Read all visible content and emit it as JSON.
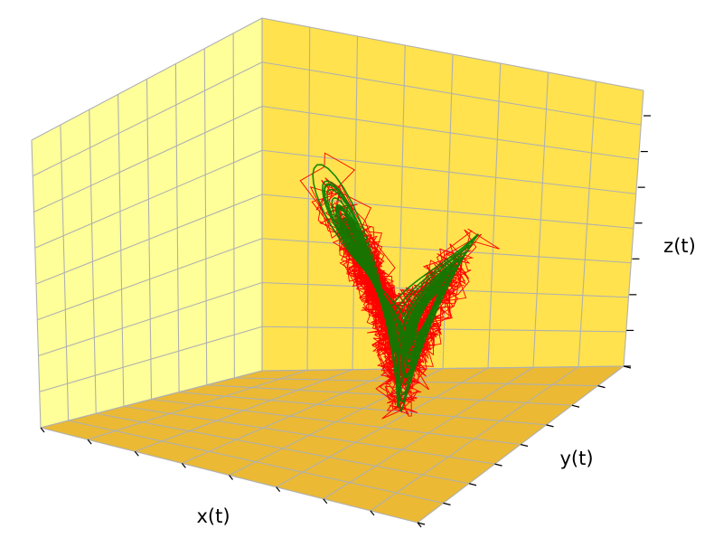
{
  "chart_data": {
    "type": "line",
    "projection": "3d",
    "title": "",
    "xlabel": "x(t)",
    "ylabel": "y(t)",
    "zlabel": "z(t)",
    "tick_labels_shown": false,
    "grid": true,
    "legend": "none",
    "series": [
      {
        "color": "#ff0000",
        "style": "noisy trajectory (thin line)"
      },
      {
        "color": "#008000",
        "style": "smooth trajectory (thick line)"
      }
    ],
    "pane_colors": {
      "left_wall": "#ffff99",
      "back_wall": "#ffe24d",
      "floor": "#ebb933"
    }
  }
}
